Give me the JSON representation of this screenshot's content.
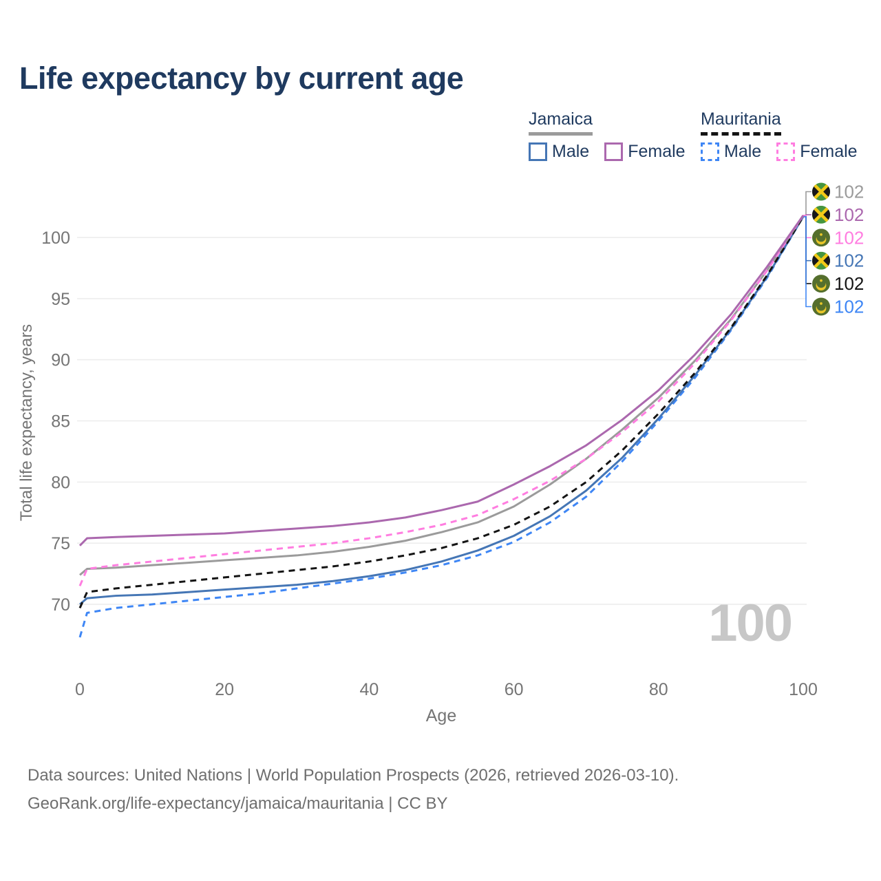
{
  "title": "Life expectancy by current age",
  "legend": {
    "groups": [
      {
        "id": "jamaica",
        "label": "Jamaica",
        "line_style": "solid",
        "line_color": "#9b9b9b",
        "items": [
          {
            "label": "Male",
            "series": "jamaica_male"
          },
          {
            "label": "Female",
            "series": "jamaica_female"
          }
        ]
      },
      {
        "id": "mauritania",
        "label": "Mauritania",
        "line_style": "dashed",
        "line_color": "#141414",
        "items": [
          {
            "label": "Male",
            "series": "mauritania_male"
          },
          {
            "label": "Female",
            "series": "mauritania_female"
          }
        ]
      }
    ]
  },
  "chart_data": {
    "type": "line",
    "title": "Life expectancy by current age",
    "xlabel": "Age",
    "ylabel": "Total life expectancy, years",
    "x_ticks": [
      0,
      20,
      40,
      60,
      80,
      100
    ],
    "y_ticks": [
      70,
      75,
      80,
      85,
      90,
      95,
      100
    ],
    "xlim": [
      0,
      100
    ],
    "ylim": [
      67,
      102.5
    ],
    "grid": "horizontal",
    "legend_position": "top-right",
    "ages": [
      0,
      1,
      5,
      10,
      15,
      20,
      25,
      30,
      35,
      40,
      45,
      50,
      55,
      60,
      65,
      70,
      75,
      80,
      85,
      90,
      95,
      100
    ],
    "series": [
      {
        "id": "jamaica_female",
        "country": "Jamaica",
        "label": "Female",
        "color": "#ab68ae",
        "dash": "solid",
        "values": [
          74.8,
          75.4,
          75.5,
          75.6,
          75.7,
          75.8,
          76.0,
          76.2,
          76.4,
          76.7,
          77.1,
          77.7,
          78.4,
          79.8,
          81.3,
          83.0,
          85.1,
          87.5,
          90.4,
          93.7,
          97.6,
          101.8
        ]
      },
      {
        "id": "mauritania_female",
        "country": "Mauritania",
        "label": "Female",
        "color": "#ff7de0",
        "dash": "dashed",
        "values": [
          71.5,
          72.9,
          73.2,
          73.5,
          73.8,
          74.1,
          74.4,
          74.7,
          75.0,
          75.4,
          75.9,
          76.5,
          77.3,
          78.6,
          80.1,
          81.9,
          84.1,
          86.6,
          89.7,
          93.2,
          97.3,
          101.8
        ]
      },
      {
        "id": "jamaica_total",
        "country": "Jamaica",
        "label": "Total",
        "color": "#9b9b9b",
        "dash": "solid",
        "values": [
          72.4,
          72.9,
          73.0,
          73.2,
          73.4,
          73.6,
          73.8,
          74.0,
          74.3,
          74.7,
          75.2,
          75.9,
          76.7,
          78.0,
          79.8,
          81.9,
          84.3,
          86.9,
          89.9,
          93.3,
          97.3,
          101.8
        ]
      },
      {
        "id": "mauritania_total",
        "country": "Mauritania",
        "label": "Total",
        "color": "#141414",
        "dash": "dashed",
        "values": [
          69.7,
          71.0,
          71.3,
          71.6,
          71.9,
          72.2,
          72.5,
          72.8,
          73.1,
          73.5,
          74.0,
          74.6,
          75.4,
          76.5,
          78.0,
          80.0,
          82.6,
          85.6,
          88.9,
          92.6,
          96.9,
          101.7
        ]
      },
      {
        "id": "jamaica_male",
        "country": "Jamaica",
        "label": "Male",
        "color": "#4576b5",
        "dash": "solid",
        "values": [
          70.0,
          70.5,
          70.7,
          70.8,
          71.0,
          71.2,
          71.4,
          71.6,
          71.9,
          72.3,
          72.8,
          73.5,
          74.4,
          75.6,
          77.2,
          79.3,
          82.0,
          85.2,
          88.7,
          92.5,
          96.8,
          101.7
        ]
      },
      {
        "id": "mauritania_male",
        "country": "Mauritania",
        "label": "Male",
        "color": "#3e86f5",
        "dash": "dashed",
        "values": [
          67.3,
          69.3,
          69.7,
          70.0,
          70.3,
          70.6,
          70.9,
          71.3,
          71.7,
          72.1,
          72.6,
          73.2,
          74.0,
          75.1,
          76.7,
          78.8,
          81.7,
          85.0,
          88.5,
          92.4,
          96.7,
          101.7
        ]
      }
    ],
    "end_labels": [
      {
        "series": "jamaica_total",
        "flag": "jamaica",
        "value": "102"
      },
      {
        "series": "jamaica_female",
        "flag": "jamaica",
        "value": "102"
      },
      {
        "series": "mauritania_female",
        "flag": "mauritania",
        "value": "102"
      },
      {
        "series": "jamaica_male",
        "flag": "jamaica",
        "value": "102"
      },
      {
        "series": "mauritania_total",
        "flag": "mauritania",
        "value": "102"
      },
      {
        "series": "mauritania_male",
        "flag": "mauritania",
        "value": "102"
      }
    ]
  },
  "annotations": {
    "age_counter": "100"
  },
  "footer": {
    "line1": "Data sources: United Nations | World Population Prospects (2026, retrieved 2026-03-10).",
    "line2": "GeoRank.org/life-expectancy/jamaica/mauritania | CC BY"
  }
}
